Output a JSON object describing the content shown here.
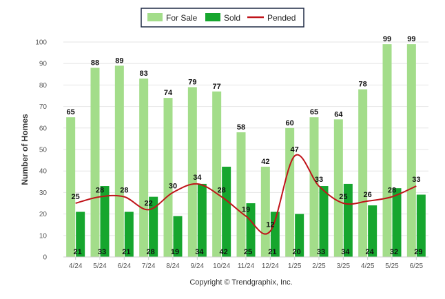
{
  "credit": "Copyright © Trendgraphix, Inc.",
  "chart_data": {
    "type": "bar",
    "ylabel": "Number of Homes",
    "xlabel": "",
    "ylim": [
      0,
      100
    ],
    "yticks": [
      0,
      10,
      20,
      30,
      40,
      50,
      60,
      70,
      80,
      90,
      100
    ],
    "grid": true,
    "legend_position": "top-center",
    "categories": [
      "4/24",
      "5/24",
      "6/24",
      "7/24",
      "8/24",
      "9/24",
      "10/24",
      "11/24",
      "12/24",
      "1/25",
      "2/25",
      "3/25",
      "4/25",
      "5/25",
      "6/25"
    ],
    "series": [
      {
        "name": "For Sale",
        "kind": "bar",
        "color": "#a3dd8a",
        "values": [
          65,
          88,
          89,
          83,
          74,
          79,
          77,
          58,
          42,
          60,
          65,
          64,
          78,
          99,
          99
        ]
      },
      {
        "name": "Sold",
        "kind": "bar",
        "color": "#16a62e",
        "values": [
          21,
          33,
          21,
          28,
          19,
          34,
          42,
          25,
          21,
          20,
          33,
          34,
          24,
          32,
          29
        ]
      },
      {
        "name": "Pended",
        "kind": "line",
        "color": "#c0141a",
        "values": [
          25,
          28,
          28,
          22,
          30,
          34,
          28,
          19,
          12,
          47,
          33,
          25,
          26,
          28,
          33
        ]
      }
    ]
  }
}
